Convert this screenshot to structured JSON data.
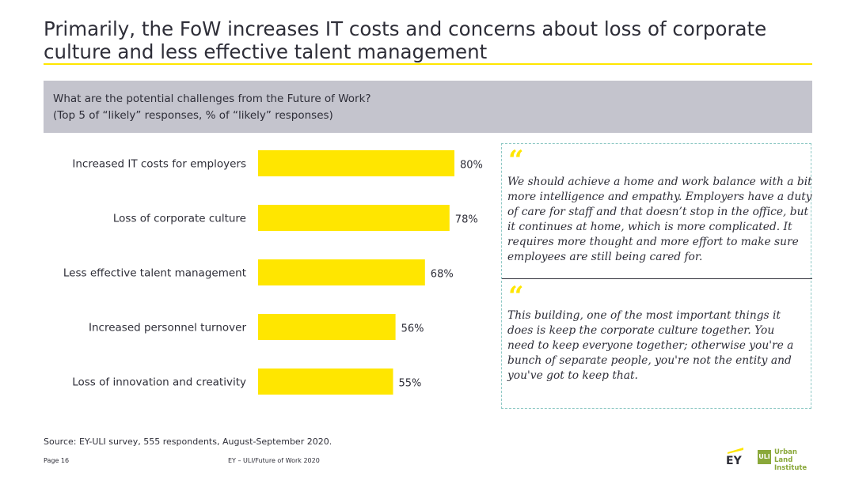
{
  "slide": {
    "title": "Primarily, the FoW increases IT costs and concerns about loss of corporate culture and less effective talent management",
    "question_line1": "What are the potential challenges from the Future of Work?",
    "question_line2": "(Top 5 of “likely” responses, % of “likely” responses)",
    "source": "Source: EY-ULI survey, 555 respondents, August-September 2020.",
    "footer_page": "Page 16",
    "footer_center": "EY – ULI/Future of Work 2020"
  },
  "colors": {
    "bar": "#ffe600",
    "text": "#2e2e38",
    "question_bg": "#c4c4cd",
    "accent": "#ffe600",
    "uli_green": "#8aa83a"
  },
  "chart_data": {
    "type": "bar",
    "orientation": "horizontal",
    "categories": [
      "Increased IT costs for employers",
      "Loss of corporate culture",
      "Less effective talent management",
      "Increased personnel turnover",
      "Loss of innovation and creativity"
    ],
    "values": [
      80,
      78,
      68,
      56,
      55
    ],
    "value_labels": [
      "80%",
      "78%",
      "68%",
      "56%",
      "55%"
    ],
    "unit": "%",
    "xlim": [
      0,
      100
    ],
    "grid": false,
    "title": "",
    "xlabel": "",
    "ylabel": ""
  },
  "quotes": {
    "mark": "“",
    "q1": "We should achieve a home and work balance with a bit more intelligence and empathy. Employers have a duty of care for staff and that doesn’t stop in the office, but it continues at home, which is more complicated. It requires more thought and more effort to make sure employees are still being cared for.",
    "q2": "This building, one of the most important things it does is keep the corporate culture together. You need to keep everyone together; otherwise you're a bunch of separate people, you're not the entity and you've got to keep that."
  },
  "logos": {
    "ey": "EY",
    "uli_mark": "ULI",
    "uli_line1": "Urban Land",
    "uli_line2": "Institute"
  }
}
